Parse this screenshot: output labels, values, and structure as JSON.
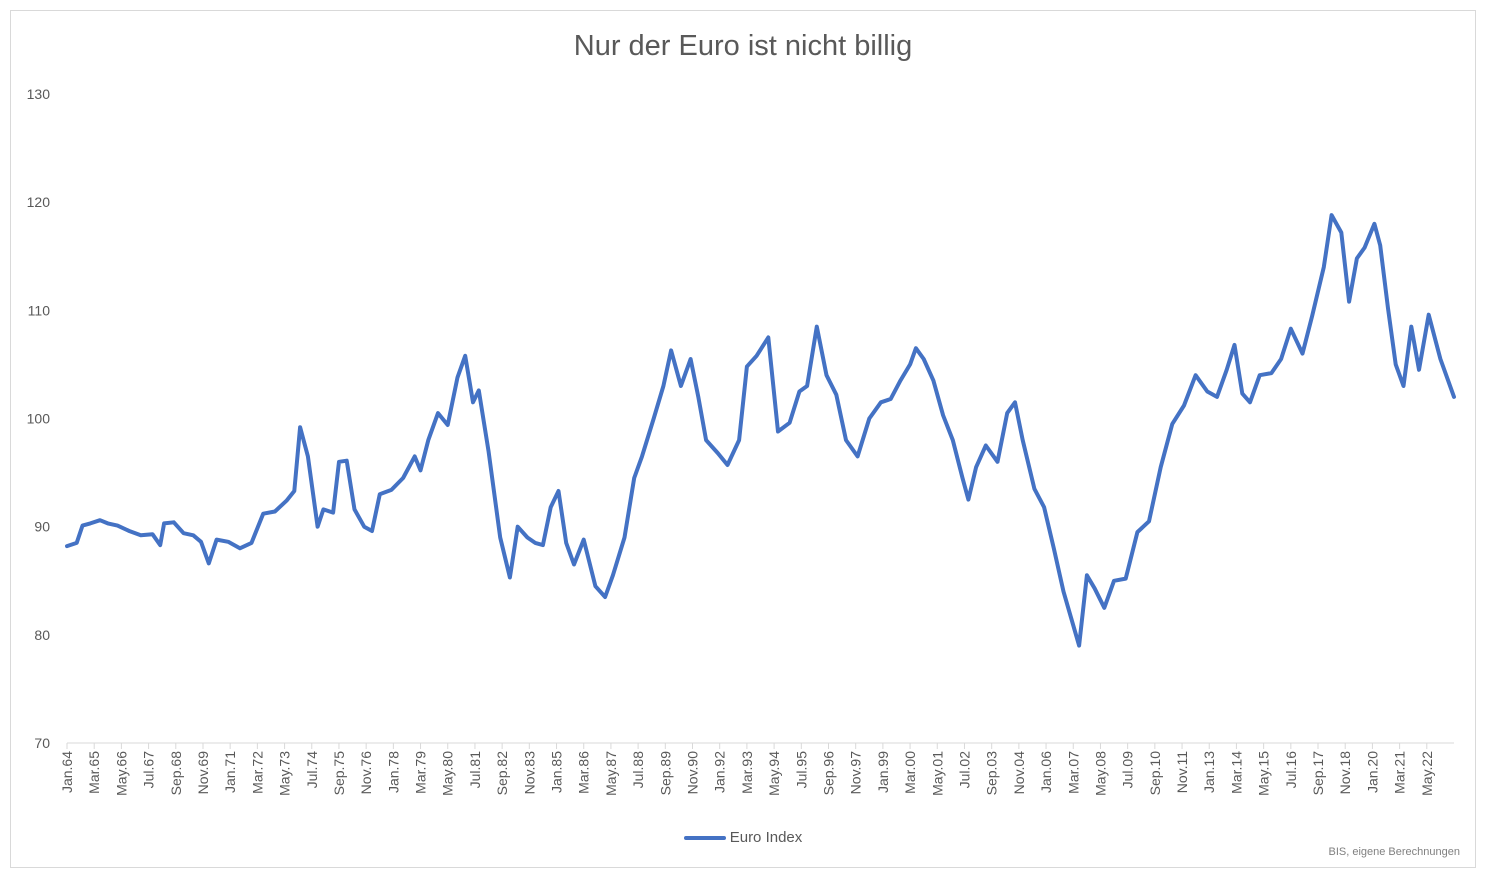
{
  "title": "Nur der Euro ist nicht billig",
  "source": "BIS, eigene Berechnungen",
  "colors": {
    "series": "#4472C4",
    "axis": "#d9d9d9",
    "text": "#595959"
  },
  "chart_data": {
    "type": "line",
    "title": "Nur der Euro ist nicht billig",
    "xlabel": "",
    "ylabel": "",
    "ylim": [
      70,
      130
    ],
    "yticks": [
      70,
      80,
      90,
      100,
      110,
      120,
      130
    ],
    "grid": false,
    "legend": "bottom",
    "x_range": [
      "1964-01",
      "2023-07"
    ],
    "xticks": [
      "Jan.64",
      "Mar.65",
      "May.66",
      "Jul.67",
      "Sep.68",
      "Nov.69",
      "Jan.71",
      "Mar.72",
      "May.73",
      "Jul.74",
      "Sep.75",
      "Nov.76",
      "Jan.78",
      "Mar.79",
      "May.80",
      "Jul.81",
      "Sep.82",
      "Nov.83",
      "Jan.85",
      "Mar.86",
      "May.87",
      "Jul.88",
      "Sep.89",
      "Nov.90",
      "Jan.92",
      "Mar.93",
      "May.94",
      "Jul.95",
      "Sep.96",
      "Nov.97",
      "Jan.99",
      "Mar.00",
      "May.01",
      "Jul.02",
      "Sep.03",
      "Nov.04",
      "Jan.06",
      "Mar.07",
      "May.08",
      "Jul.09",
      "Sep.10",
      "Nov.11",
      "Jan.13",
      "Mar.14",
      "May.15",
      "Jul.16",
      "Sep.17",
      "Nov.18",
      "Jan.20",
      "Mar.21",
      "May.22"
    ],
    "series": [
      {
        "name": "Euro Index",
        "color": "#4472C4",
        "points": [
          [
            "1964-01",
            88.2
          ],
          [
            "1964-06",
            88.5
          ],
          [
            "1964-09",
            90.1
          ],
          [
            "1965-01",
            90.3
          ],
          [
            "1965-06",
            90.6
          ],
          [
            "1965-10",
            90.3
          ],
          [
            "1966-03",
            90.1
          ],
          [
            "1966-09",
            89.6
          ],
          [
            "1967-03",
            89.2
          ],
          [
            "1967-09",
            89.3
          ],
          [
            "1968-01",
            88.3
          ],
          [
            "1968-03",
            90.3
          ],
          [
            "1968-08",
            90.4
          ],
          [
            "1969-01",
            89.4
          ],
          [
            "1969-06",
            89.2
          ],
          [
            "1969-10",
            88.6
          ],
          [
            "1970-02",
            86.6
          ],
          [
            "1970-06",
            88.8
          ],
          [
            "1970-12",
            88.6
          ],
          [
            "1971-06",
            88.0
          ],
          [
            "1971-12",
            88.5
          ],
          [
            "1972-06",
            91.2
          ],
          [
            "1972-12",
            91.4
          ],
          [
            "1973-06",
            92.4
          ],
          [
            "1973-10",
            93.3
          ],
          [
            "1974-01",
            99.2
          ],
          [
            "1974-05",
            96.5
          ],
          [
            "1974-10",
            90.0
          ],
          [
            "1975-01",
            91.6
          ],
          [
            "1975-06",
            91.3
          ],
          [
            "1975-09",
            96.0
          ],
          [
            "1976-01",
            96.1
          ],
          [
            "1976-05",
            91.6
          ],
          [
            "1976-10",
            90.0
          ],
          [
            "1977-02",
            89.6
          ],
          [
            "1977-06",
            93.0
          ],
          [
            "1977-12",
            93.4
          ],
          [
            "1978-06",
            94.5
          ],
          [
            "1978-12",
            96.5
          ],
          [
            "1979-03",
            95.2
          ],
          [
            "1979-07",
            98.0
          ],
          [
            "1979-12",
            100.5
          ],
          [
            "1980-05",
            99.4
          ],
          [
            "1980-10",
            103.8
          ],
          [
            "1981-02",
            105.8
          ],
          [
            "1981-06",
            101.5
          ],
          [
            "1981-09",
            102.6
          ],
          [
            "1982-02",
            97.0
          ],
          [
            "1982-08",
            89.0
          ],
          [
            "1983-01",
            85.3
          ],
          [
            "1983-05",
            90.0
          ],
          [
            "1983-10",
            89.0
          ],
          [
            "1984-02",
            88.5
          ],
          [
            "1984-06",
            88.3
          ],
          [
            "1984-10",
            91.8
          ],
          [
            "1985-02",
            93.3
          ],
          [
            "1985-06",
            88.5
          ],
          [
            "1985-10",
            86.5
          ],
          [
            "1986-03",
            88.8
          ],
          [
            "1986-09",
            84.5
          ],
          [
            "1987-02",
            83.5
          ],
          [
            "1987-06",
            85.5
          ],
          [
            "1987-12",
            89.0
          ],
          [
            "1988-05",
            94.5
          ],
          [
            "1988-09",
            96.5
          ],
          [
            "1989-03",
            100.0
          ],
          [
            "1989-08",
            103.0
          ],
          [
            "1989-12",
            106.3
          ],
          [
            "1990-05",
            103.0
          ],
          [
            "1990-10",
            105.5
          ],
          [
            "1991-02",
            102.0
          ],
          [
            "1991-06",
            98.0
          ],
          [
            "1991-12",
            96.8
          ],
          [
            "1992-05",
            95.7
          ],
          [
            "1992-11",
            98.0
          ],
          [
            "1993-03",
            104.8
          ],
          [
            "1993-08",
            105.8
          ],
          [
            "1994-02",
            107.5
          ],
          [
            "1994-07",
            98.8
          ],
          [
            "1995-01",
            99.6
          ],
          [
            "1995-06",
            102.5
          ],
          [
            "1995-10",
            103.0
          ],
          [
            "1996-03",
            108.5
          ],
          [
            "1996-08",
            104.0
          ],
          [
            "1997-01",
            102.2
          ],
          [
            "1997-06",
            98.0
          ],
          [
            "1997-12",
            96.5
          ],
          [
            "1998-06",
            100.0
          ],
          [
            "1998-12",
            101.5
          ],
          [
            "1999-05",
            101.8
          ],
          [
            "1999-10",
            103.5
          ],
          [
            "2000-03",
            105.0
          ],
          [
            "2000-06",
            106.5
          ],
          [
            "2000-10",
            105.5
          ],
          [
            "2001-03",
            103.5
          ],
          [
            "2001-08",
            100.3
          ],
          [
            "2002-01",
            98.0
          ],
          [
            "2002-06",
            94.5
          ],
          [
            "2002-09",
            92.5
          ],
          [
            "2003-01",
            95.5
          ],
          [
            "2003-06",
            97.5
          ],
          [
            "2003-12",
            96.0
          ],
          [
            "2004-05",
            100.5
          ],
          [
            "2004-09",
            101.5
          ],
          [
            "2005-01",
            98.0
          ],
          [
            "2005-07",
            93.5
          ],
          [
            "2005-12",
            91.8
          ],
          [
            "2006-05",
            88.0
          ],
          [
            "2006-10",
            84.0
          ],
          [
            "2007-02",
            81.5
          ],
          [
            "2007-06",
            79.0
          ],
          [
            "2007-10",
            85.5
          ],
          [
            "2008-02",
            84.3
          ],
          [
            "2008-07",
            82.5
          ],
          [
            "2008-12",
            85.0
          ],
          [
            "2009-06",
            85.2
          ],
          [
            "2009-12",
            89.5
          ],
          [
            "2010-06",
            90.5
          ],
          [
            "2010-12",
            95.5
          ],
          [
            "2011-06",
            99.5
          ],
          [
            "2011-12",
            101.2
          ],
          [
            "2012-06",
            104.0
          ],
          [
            "2012-12",
            102.5
          ],
          [
            "2013-05",
            102.0
          ],
          [
            "2013-10",
            104.5
          ],
          [
            "2014-02",
            106.8
          ],
          [
            "2014-06",
            102.3
          ],
          [
            "2014-10",
            101.5
          ],
          [
            "2015-03",
            104.0
          ],
          [
            "2015-09",
            104.2
          ],
          [
            "2016-02",
            105.5
          ],
          [
            "2016-07",
            108.3
          ],
          [
            "2017-01",
            106.0
          ],
          [
            "2017-06",
            109.5
          ],
          [
            "2017-12",
            114.0
          ],
          [
            "2018-04",
            118.8
          ],
          [
            "2018-09",
            117.2
          ],
          [
            "2019-01",
            110.8
          ],
          [
            "2019-05",
            114.8
          ],
          [
            "2019-09",
            115.8
          ],
          [
            "2020-02",
            118.0
          ],
          [
            "2020-05",
            116.0
          ],
          [
            "2020-09",
            110.2
          ],
          [
            "2021-01",
            105.0
          ],
          [
            "2021-05",
            103.0
          ],
          [
            "2021-09",
            108.5
          ],
          [
            "2022-01",
            104.5
          ],
          [
            "2022-06",
            109.6
          ],
          [
            "2022-12",
            105.5
          ],
          [
            "2023-07",
            102.0
          ]
        ]
      }
    ]
  }
}
